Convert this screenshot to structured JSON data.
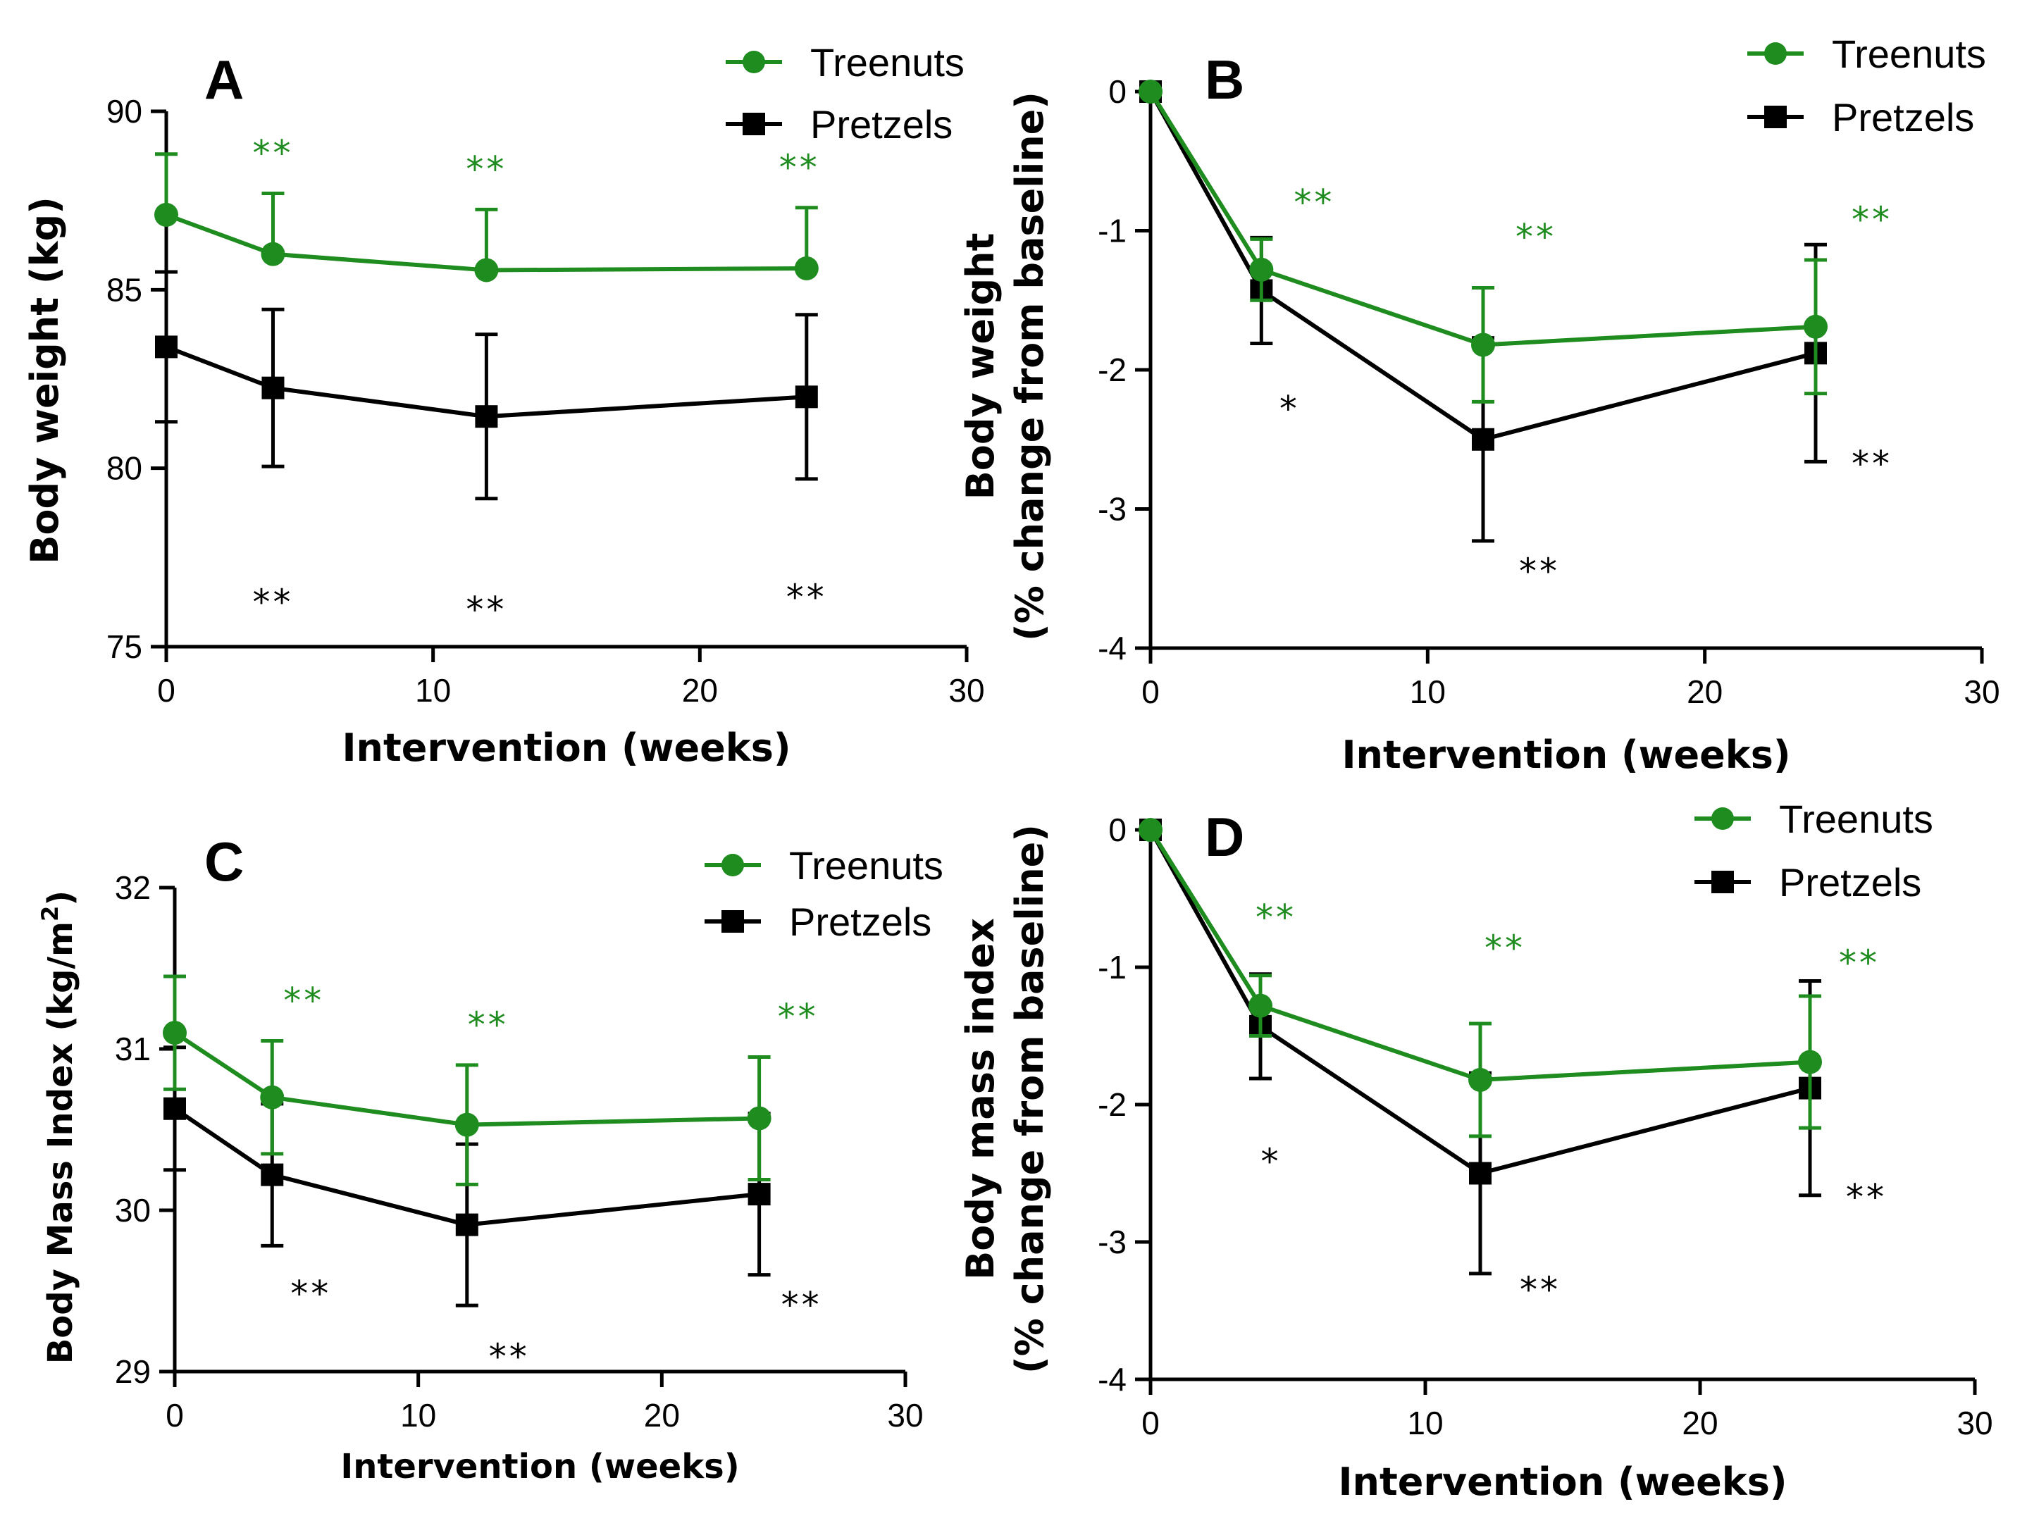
{
  "colors": {
    "treenuts": "#1e8c1e",
    "pretzels": "#000000"
  },
  "chart_data": [
    {
      "type": "line",
      "panel": "A",
      "xlabel": "Intervention (weeks)",
      "ylabel": "Body weight (kg)",
      "ylabel2": "",
      "xlim": [
        0,
        30
      ],
      "ylim": [
        75,
        90
      ],
      "xticks": [
        0,
        10,
        20,
        30
      ],
      "yticks": [
        75,
        80,
        85,
        90
      ],
      "x": [
        0,
        4,
        12,
        24
      ],
      "legend": {
        "placement": "top-right",
        "entries": [
          "Treenuts",
          "Pretzels"
        ]
      },
      "series": [
        {
          "name": "Treenuts",
          "marker": "circle",
          "values": [
            87.1,
            86.0,
            85.55,
            85.6
          ],
          "err": [
            1.7,
            1.7,
            1.7,
            1.7
          ],
          "err_dir": [
            "up",
            "up",
            "up",
            "up"
          ],
          "sig": [
            "",
            "**",
            "**",
            "**"
          ]
        },
        {
          "name": "Pretzels",
          "marker": "square",
          "values": [
            83.4,
            82.25,
            81.45,
            82.0
          ],
          "err": [
            2.1,
            2.2,
            2.3,
            2.3
          ],
          "err_dir": [
            "both",
            "both",
            "both",
            "both"
          ],
          "sig": [
            "",
            "**",
            "**",
            "**"
          ]
        }
      ]
    },
    {
      "type": "line",
      "panel": "B",
      "xlabel": "Intervention (weeks)",
      "ylabel": "Body weight",
      "ylabel2": "(% change from baseline)",
      "xlim": [
        0,
        30
      ],
      "ylim": [
        -4,
        0
      ],
      "xticks": [
        0,
        10,
        20,
        30
      ],
      "yticks": [
        -4,
        -3,
        -2,
        -1,
        0
      ],
      "x": [
        0,
        4,
        12,
        24
      ],
      "legend": {
        "placement": "top-right",
        "entries": [
          "Treenuts",
          "Pretzels"
        ]
      },
      "series": [
        {
          "name": "Treenuts",
          "marker": "circle",
          "values": [
            0,
            -1.28,
            -1.82,
            -1.69
          ],
          "err": [
            0,
            0.22,
            0.41,
            0.48
          ],
          "err_dir": [
            "both",
            "both",
            "both",
            "both"
          ],
          "sig": [
            "",
            "**",
            "**",
            "**"
          ]
        },
        {
          "name": "Pretzels",
          "marker": "square",
          "values": [
            0,
            -1.43,
            -2.5,
            -1.88
          ],
          "err": [
            0,
            0.38,
            0.73,
            0.78
          ],
          "err_dir": [
            "both",
            "both",
            "both",
            "both"
          ],
          "sig": [
            "",
            "*",
            "**",
            "**"
          ]
        }
      ]
    },
    {
      "type": "line",
      "panel": "C",
      "xlabel": "Intervention (weeks)",
      "ylabel": "Body Mass Index (kg/m",
      "ylabel_sup": "2",
      "ylabel_end": ")",
      "ylabel2": "",
      "xlim": [
        0,
        30
      ],
      "ylim": [
        29,
        32
      ],
      "xticks": [
        0,
        10,
        20,
        30
      ],
      "yticks": [
        29,
        30,
        31,
        32
      ],
      "x": [
        0,
        4,
        12,
        24
      ],
      "legend": {
        "placement": "top-right",
        "entries": [
          "Treenuts",
          "Pretzels"
        ]
      },
      "series": [
        {
          "name": "Treenuts",
          "marker": "circle",
          "values": [
            31.1,
            30.7,
            30.53,
            30.57
          ],
          "err": [
            0.35,
            0.35,
            0.37,
            0.38
          ],
          "err_dir": [
            "both",
            "both",
            "both",
            "both"
          ],
          "sig": [
            "",
            "**",
            "**",
            "**"
          ]
        },
        {
          "name": "Pretzels",
          "marker": "square",
          "values": [
            30.63,
            30.22,
            29.91,
            30.1
          ],
          "err": [
            0.38,
            0.44,
            0.5,
            0.5
          ],
          "err_dir": [
            "both",
            "both",
            "both",
            "both"
          ],
          "sig": [
            "",
            "**",
            "**",
            "**"
          ]
        }
      ]
    },
    {
      "type": "line",
      "panel": "D",
      "xlabel": "Intervention (weeks)",
      "ylabel": "Body mass index",
      "ylabel2": "(% change from baseline)",
      "xlim": [
        0,
        30
      ],
      "ylim": [
        -4,
        0
      ],
      "xticks": [
        0,
        10,
        20,
        30
      ],
      "yticks": [
        -4,
        -3,
        -2,
        -1,
        0
      ],
      "x": [
        0,
        4,
        12,
        24
      ],
      "legend": {
        "placement": "top-right",
        "entries": [
          "Treenuts",
          "Pretzels"
        ]
      },
      "series": [
        {
          "name": "Treenuts",
          "marker": "circle",
          "values": [
            0,
            -1.28,
            -1.82,
            -1.69
          ],
          "err": [
            0,
            0.22,
            0.41,
            0.48
          ],
          "err_dir": [
            "both",
            "both",
            "both",
            "both"
          ],
          "sig": [
            "",
            "**",
            "**",
            "**"
          ]
        },
        {
          "name": "Pretzels",
          "marker": "square",
          "values": [
            0,
            -1.43,
            -2.5,
            -1.88
          ],
          "err": [
            0,
            0.38,
            0.73,
            0.78
          ],
          "err_dir": [
            "both",
            "both",
            "both",
            "both"
          ],
          "sig": [
            "",
            "*",
            "**",
            "**"
          ]
        }
      ]
    }
  ]
}
